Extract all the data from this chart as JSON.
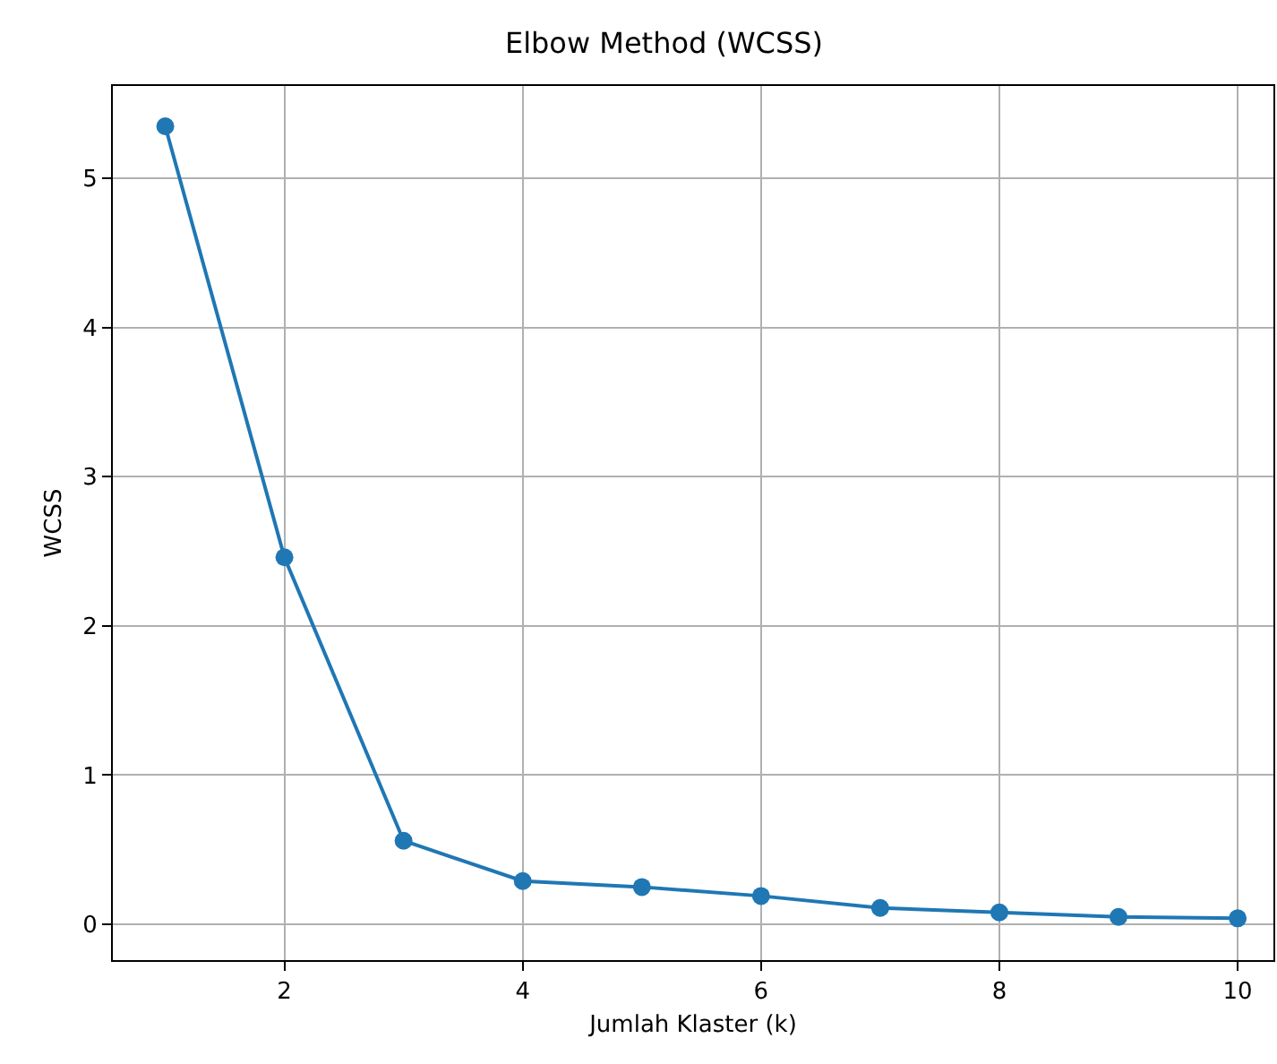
{
  "chart_data": {
    "type": "line",
    "title": "Elbow Method (WCSS)",
    "xlabel": "Jumlah Klaster (k)",
    "ylabel": "WCSS",
    "x": [
      1,
      2,
      3,
      4,
      5,
      6,
      7,
      8,
      9,
      10
    ],
    "series": [
      {
        "color": "#1f77b4",
        "values": [
          5.35,
          2.46,
          0.56,
          0.29,
          0.25,
          0.19,
          0.11,
          0.08,
          0.05,
          0.04
        ]
      }
    ],
    "xlim": [
      0.56,
      10.3
    ],
    "xticks": [
      2,
      4,
      6,
      8,
      10
    ],
    "ylim": [
      -0.24,
      5.62
    ],
    "yticks": [
      0,
      1,
      2,
      3,
      4,
      5
    ],
    "grid": true,
    "marker": "circle",
    "line_style": "solid"
  }
}
